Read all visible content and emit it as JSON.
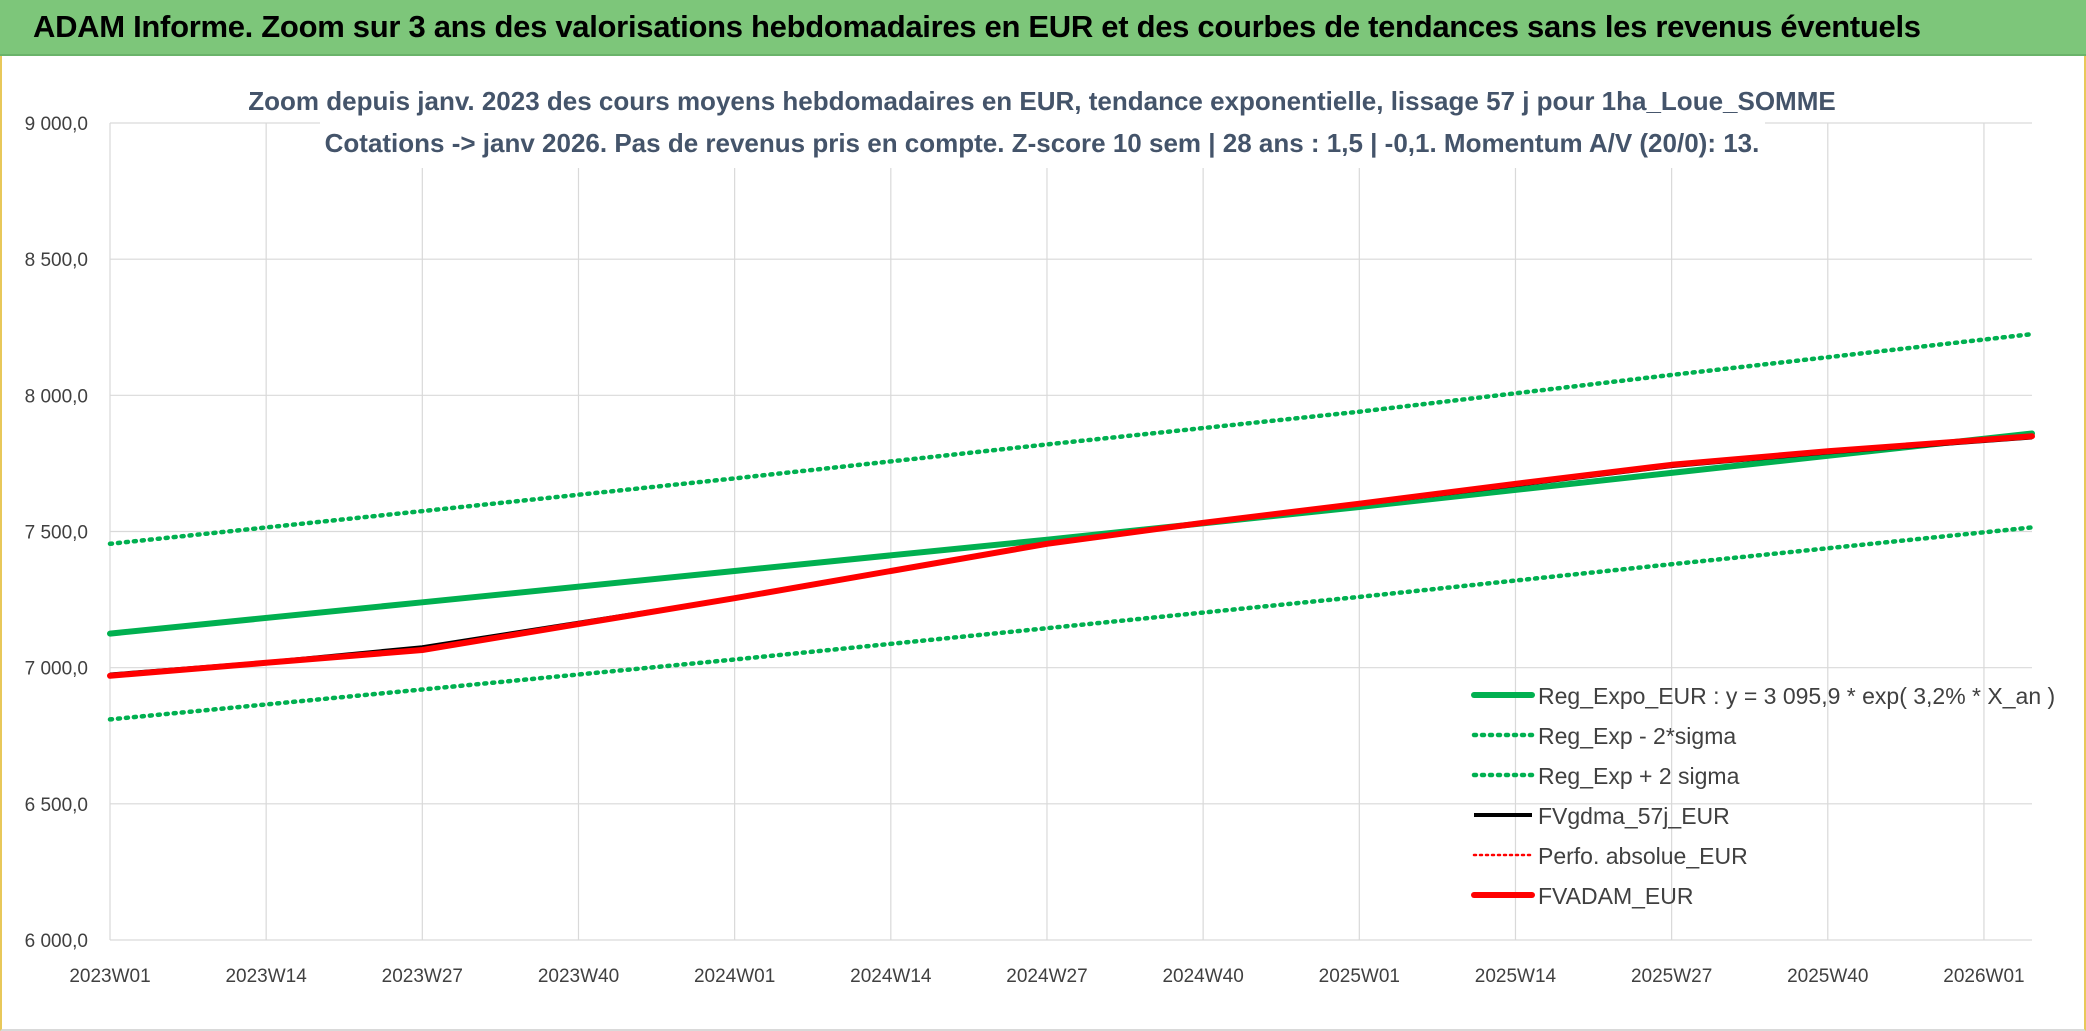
{
  "banner": {
    "title": "ADAM Informe. Zoom sur 3 ans des valorisations hebdomadaires en EUR et des courbes de tendances sans les revenus éventuels"
  },
  "colors": {
    "banner_bg": "#7dc67a",
    "reg_expo": "#00b050",
    "reg_sigma": "#00b050",
    "fvgdma": "#000000",
    "perfo": "#ff0000",
    "fvadam": "#ff0000",
    "grid": "#d9d9d9",
    "text": "#404040"
  },
  "chart_data": {
    "type": "line",
    "title": "Zoom depuis janv. 2023 des cours moyens hebdomadaires en EUR, tendance exponentielle, lissage 57 j pour 1ha_Loue_SOMME",
    "subtitle": "Cotations -> janv 2026. Pas de revenus pris en compte. Z-score 10 sem | 28 ans : 1,5 | -0,1. Momentum A/V (20/0): 13.",
    "x_ticks": [
      "2023W01",
      "2023W14",
      "2023W27",
      "2023W40",
      "2024W01",
      "2024W14",
      "2024W27",
      "2024W40",
      "2025W01",
      "2025W14",
      "2025W27",
      "2025W40",
      "2026W01"
    ],
    "x_range": [
      "2023W01",
      "2026W05"
    ],
    "ylim": [
      6000,
      9000
    ],
    "y_ticks": [
      "6 000,0",
      "6 500,0",
      "7 000,0",
      "7 500,0",
      "8 000,0",
      "8 500,0",
      "9 000,0"
    ],
    "grid": true,
    "legend_position": "bottom-right",
    "series": [
      {
        "name": "Reg_Expo_EUR : y = 3 095,9 * exp( 3,2% *  X_an )",
        "style": "solid-thick",
        "x": [
          "2023W01",
          "2023W27",
          "2024W01",
          "2024W27",
          "2025W01",
          "2025W27",
          "2026W05"
        ],
        "values": [
          7125,
          7240,
          7355,
          7470,
          7590,
          7715,
          7860
        ]
      },
      {
        "name": "Reg_Exp - 2*sigma",
        "style": "dotted",
        "x": [
          "2023W01",
          "2023W27",
          "2024W01",
          "2024W27",
          "2025W01",
          "2025W27",
          "2026W05"
        ],
        "values": [
          6810,
          6920,
          7030,
          7145,
          7260,
          7380,
          7515
        ]
      },
      {
        "name": "Reg_Exp + 2 sigma",
        "style": "dotted",
        "x": [
          "2023W01",
          "2023W27",
          "2024W01",
          "2024W27",
          "2025W01",
          "2025W27",
          "2026W05"
        ],
        "values": [
          7455,
          7575,
          7695,
          7820,
          7940,
          8075,
          8225
        ]
      },
      {
        "name": "FVgdma_57j_EUR",
        "style": "solid",
        "x": [
          "2023W01",
          "2023W14",
          "2023W27",
          "2023W40",
          "2024W01",
          "2024W14",
          "2024W27",
          "2024W40",
          "2025W01",
          "2025W14",
          "2025W27",
          "2025W40",
          "2026W05"
        ],
        "values": [
          6975,
          7020,
          7075,
          7165,
          7255,
          7355,
          7455,
          7530,
          7600,
          7670,
          7740,
          7790,
          7845
        ]
      },
      {
        "name": "Perfo. absolue_EUR",
        "style": "dotted-thin",
        "x": [],
        "values": []
      },
      {
        "name": "FVADAM_EUR",
        "style": "solid-thick",
        "x": [
          "2023W01",
          "2023W14",
          "2023W27",
          "2023W40",
          "2024W01",
          "2024W14",
          "2024W27",
          "2024W40",
          "2025W01",
          "2025W14",
          "2025W27",
          "2025W40",
          "2026W05"
        ],
        "values": [
          6970,
          7018,
          7065,
          7160,
          7255,
          7355,
          7455,
          7532,
          7602,
          7675,
          7745,
          7795,
          7850
        ]
      }
    ]
  }
}
